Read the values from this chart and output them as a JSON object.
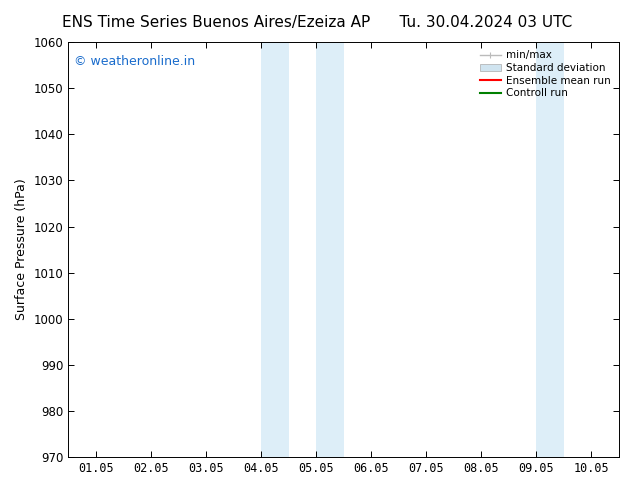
{
  "title_left": "ENS Time Series Buenos Aires/Ezeiza AP",
  "title_right": "Tu. 30.04.2024 03 UTC",
  "ylabel": "Surface Pressure (hPa)",
  "ylim": [
    970,
    1060
  ],
  "yticks": [
    970,
    980,
    990,
    1000,
    1010,
    1020,
    1030,
    1040,
    1050,
    1060
  ],
  "xlim_min": 0,
  "xlim_max": 10,
  "xtick_labels": [
    "01.05",
    "02.05",
    "03.05",
    "04.05",
    "05.05",
    "06.05",
    "07.05",
    "08.05",
    "09.05",
    "10.05"
  ],
  "xtick_positions": [
    0.5,
    1.5,
    2.5,
    3.5,
    4.5,
    5.5,
    6.5,
    7.5,
    8.5,
    9.5
  ],
  "shaded_bands": [
    {
      "xmin": 3.5,
      "xmax": 4.0,
      "color": "#ddeef8"
    },
    {
      "xmin": 4.5,
      "xmax": 5.0,
      "color": "#ddeef8"
    },
    {
      "xmin": 8.5,
      "xmax": 9.0,
      "color": "#ddeef8"
    }
  ],
  "watermark_text": "© weatheronline.in",
  "watermark_color": "#1a6ccc",
  "watermark_fontsize": 9,
  "legend_labels": [
    "min/max",
    "Standard deviation",
    "Ensemble mean run",
    "Controll run"
  ],
  "background_color": "#ffffff",
  "title_fontsize": 11,
  "axis_label_fontsize": 9,
  "tick_fontsize": 8.5,
  "minmax_color": "#bbbbbb",
  "stddev_color": "#d0e4f0",
  "ensemble_color": "red",
  "control_color": "green"
}
